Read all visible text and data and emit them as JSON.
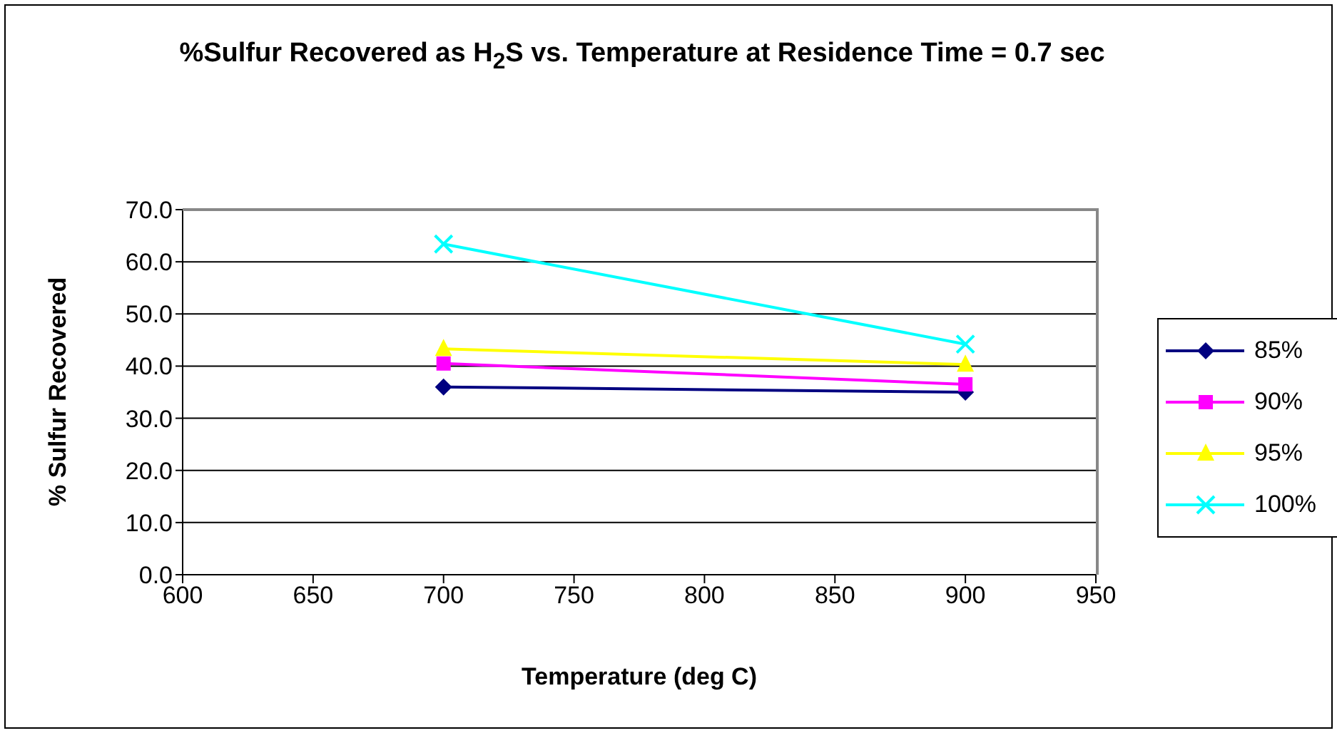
{
  "chart_data": {
    "type": "line",
    "title": "%Sulfur Recovered as H$_{2}$S vs. Temperature at  Residence Time = 0.7 sec",
    "xlabel": "Temperature (deg C)",
    "ylabel": "% Sulfur Recovered",
    "x": [
      700,
      900
    ],
    "series": [
      {
        "name": "85%",
        "color": "#000080",
        "marker": "diamond",
        "values": [
          36.0,
          35.0
        ]
      },
      {
        "name": "90%",
        "color": "#ff00ff",
        "marker": "square",
        "values": [
          40.5,
          36.5
        ]
      },
      {
        "name": "95%",
        "color": "#ffff00",
        "marker": "triangle",
        "values": [
          43.3,
          40.3
        ]
      },
      {
        "name": "100%",
        "color": "#00ffff",
        "marker": "cross",
        "values": [
          63.4,
          44.2
        ]
      }
    ],
    "xlim": [
      600,
      950
    ],
    "xticks": [
      600,
      650,
      700,
      750,
      800,
      850,
      900,
      950
    ],
    "ylim": [
      0,
      70
    ],
    "yticks": [
      {
        "value": 0,
        "label": "0.0"
      },
      {
        "value": 10,
        "label": "10.0"
      },
      {
        "value": 20,
        "label": "20.0"
      },
      {
        "value": 30,
        "label": "30.0"
      },
      {
        "value": 40,
        "label": "40.0"
      },
      {
        "value": 50,
        "label": "50.0"
      },
      {
        "value": 60,
        "label": "60.0"
      },
      {
        "value": 70,
        "label": "70.0"
      }
    ],
    "grid": "y",
    "legend": "right"
  }
}
